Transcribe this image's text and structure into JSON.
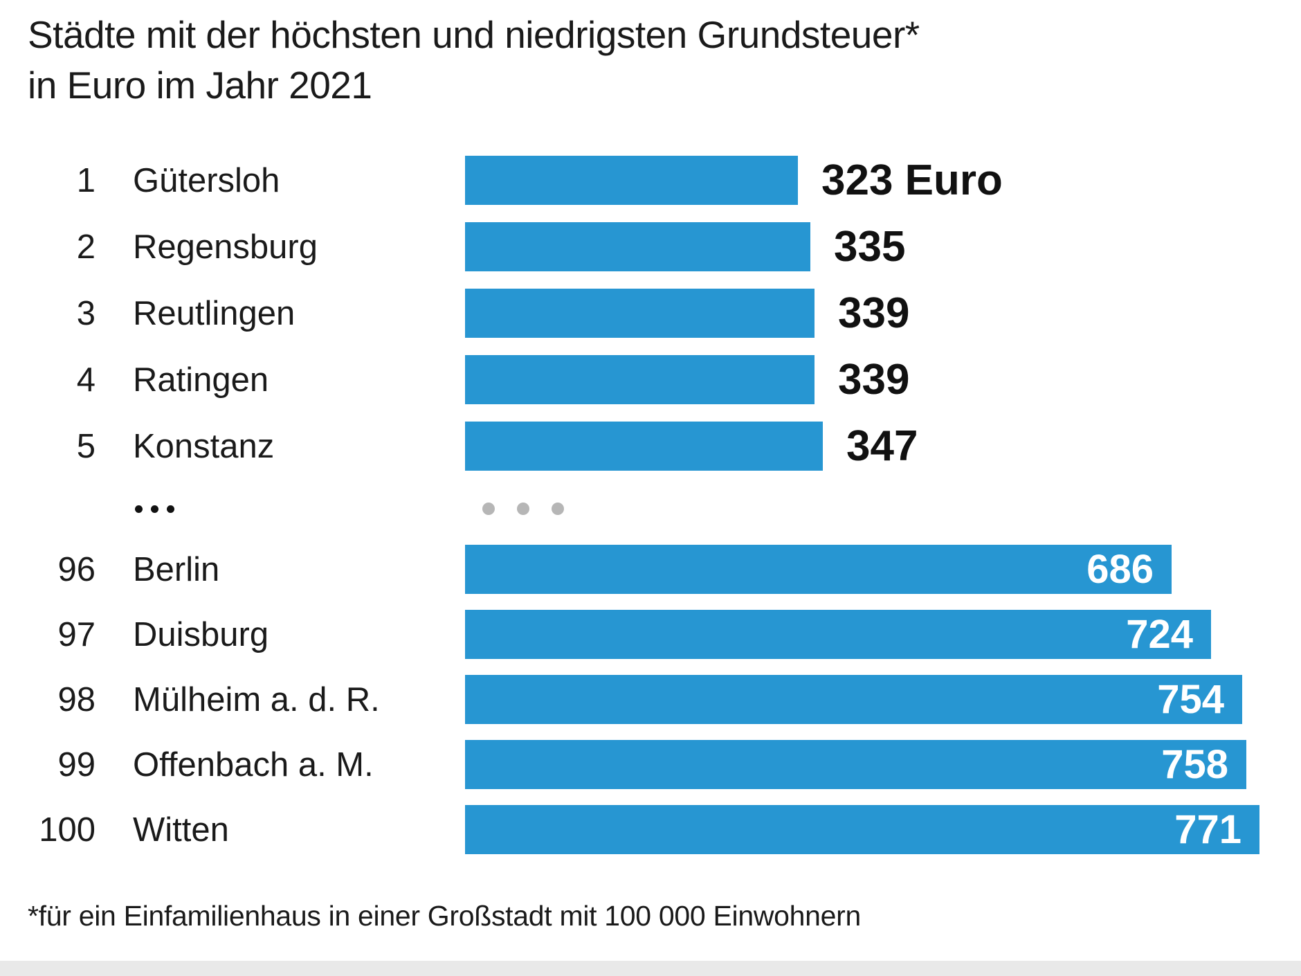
{
  "title": {
    "line1": "Städte mit der höchsten und niedrigsten Grundsteuer*",
    "line2": "in Euro im Jahr 2021"
  },
  "footnote": {
    "text": "*für ein Einfamilienhaus in einer Großstadt mit 100 000 Einwohnern"
  },
  "ellipsis": {
    "label": "…",
    "left_dot_count": 3,
    "bar_dot_count": 3
  },
  "colors": {
    "bar": "#2796d2",
    "text": "#1a1a1a",
    "value_inside": "#ffffff",
    "value_outside": "#111111",
    "gray_dots": "#b6b6b6",
    "footer_band": "#e9e9e9"
  },
  "chart_data": {
    "type": "bar",
    "orientation": "horizontal",
    "title": "Städte mit der höchsten und niedrigsten Grundsteuer*",
    "subtitle": "in Euro im Jahr 2021",
    "unit": "Euro",
    "xlim": [
      0,
      800
    ],
    "grid": false,
    "legend": "none",
    "categories": [
      "Gütersloh",
      "Regensburg",
      "Reutlingen",
      "Ratingen",
      "Konstanz",
      "Berlin",
      "Duisburg",
      "Mülheim a. d. R.",
      "Offenbach a. M.",
      "Witten"
    ],
    "values": [
      323,
      335,
      339,
      339,
      347,
      686,
      724,
      754,
      758,
      771
    ],
    "ranks": [
      1,
      2,
      3,
      4,
      5,
      96,
      97,
      98,
      99,
      100
    ],
    "groups": [
      {
        "name": "lowest-top5",
        "value_position": "outside",
        "rows": [
          {
            "rank": "1",
            "city": "Gütersloh",
            "value": 323,
            "label": "323 Euro"
          },
          {
            "rank": "2",
            "city": "Regensburg",
            "value": 335,
            "label": "335"
          },
          {
            "rank": "3",
            "city": "Reutlingen",
            "value": 339,
            "label": "339"
          },
          {
            "rank": "4",
            "city": "Ratingen",
            "value": 339,
            "label": "339"
          },
          {
            "rank": "5",
            "city": "Konstanz",
            "value": 347,
            "label": "347"
          }
        ]
      },
      {
        "name": "highest-bottom5",
        "value_position": "inside",
        "rows": [
          {
            "rank": "96",
            "city": "Berlin",
            "value": 686,
            "label": "686"
          },
          {
            "rank": "97",
            "city": "Duisburg",
            "value": 724,
            "label": "724"
          },
          {
            "rank": "98",
            "city": "Mülheim a. d. R.",
            "value": 754,
            "label": "754"
          },
          {
            "rank": "99",
            "city": "Offenbach a. M.",
            "value": 758,
            "label": "758"
          },
          {
            "rank": "100",
            "city": "Witten",
            "value": 771,
            "label": "771"
          }
        ]
      }
    ]
  }
}
